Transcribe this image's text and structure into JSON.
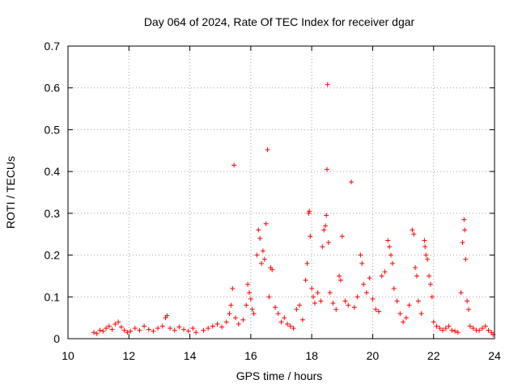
{
  "chart_data": {
    "type": "scatter",
    "title": "Day 064 of 2024, Rate Of TEC Index for receiver dgar",
    "xlabel": "GPS time / hours",
    "ylabel": "ROTI / TECUs",
    "xlim": [
      10,
      24
    ],
    "ylim": [
      0,
      0.7
    ],
    "x_ticks": [
      "10",
      "12",
      "14",
      "16",
      "18",
      "20",
      "22",
      "24"
    ],
    "y_ticks": [
      "0",
      "0.1",
      "0.2",
      "0.3",
      "0.4",
      "0.5",
      "0.6",
      "0.7"
    ],
    "grid": true,
    "marker": "+",
    "color": "#ff0000",
    "series": [
      {
        "points": [
          [
            10.85,
            0.015
          ],
          [
            10.95,
            0.012
          ],
          [
            11.05,
            0.02
          ],
          [
            11.15,
            0.018
          ],
          [
            11.25,
            0.025
          ],
          [
            11.35,
            0.03
          ],
          [
            11.45,
            0.022
          ],
          [
            11.55,
            0.035
          ],
          [
            11.65,
            0.04
          ],
          [
            11.75,
            0.028
          ],
          [
            11.85,
            0.02
          ],
          [
            11.95,
            0.015
          ],
          [
            12.05,
            0.018
          ],
          [
            12.2,
            0.025
          ],
          [
            12.35,
            0.02
          ],
          [
            12.5,
            0.03
          ],
          [
            12.65,
            0.022
          ],
          [
            12.8,
            0.018
          ],
          [
            12.95,
            0.025
          ],
          [
            13.1,
            0.03
          ],
          [
            13.2,
            0.05
          ],
          [
            13.25,
            0.055
          ],
          [
            13.35,
            0.025
          ],
          [
            13.5,
            0.02
          ],
          [
            13.65,
            0.028
          ],
          [
            13.8,
            0.022
          ],
          [
            13.95,
            0.018
          ],
          [
            14.1,
            0.025
          ],
          [
            14.2,
            0.015
          ],
          [
            14.45,
            0.02
          ],
          [
            14.6,
            0.025
          ],
          [
            14.75,
            0.03
          ],
          [
            14.9,
            0.035
          ],
          [
            15.05,
            0.028
          ],
          [
            15.2,
            0.04
          ],
          [
            15.3,
            0.06
          ],
          [
            15.35,
            0.08
          ],
          [
            15.4,
            0.12
          ],
          [
            15.45,
            0.415
          ],
          [
            15.5,
            0.05
          ],
          [
            15.6,
            0.035
          ],
          [
            15.75,
            0.045
          ],
          [
            15.85,
            0.08
          ],
          [
            15.9,
            0.13
          ],
          [
            15.95,
            0.11
          ],
          [
            16.0,
            0.095
          ],
          [
            16.05,
            0.07
          ],
          [
            16.1,
            0.06
          ],
          [
            16.2,
            0.2
          ],
          [
            16.25,
            0.26
          ],
          [
            16.3,
            0.24
          ],
          [
            16.35,
            0.18
          ],
          [
            16.4,
            0.21
          ],
          [
            16.45,
            0.19
          ],
          [
            16.5,
            0.275
          ],
          [
            16.55,
            0.452
          ],
          [
            16.6,
            0.1
          ],
          [
            16.65,
            0.17
          ],
          [
            16.7,
            0.165
          ],
          [
            16.8,
            0.075
          ],
          [
            16.9,
            0.06
          ],
          [
            17.0,
            0.04
          ],
          [
            17.1,
            0.05
          ],
          [
            17.2,
            0.035
          ],
          [
            17.3,
            0.03
          ],
          [
            17.4,
            0.025
          ],
          [
            17.5,
            0.07
          ],
          [
            17.6,
            0.08
          ],
          [
            17.7,
            0.045
          ],
          [
            17.8,
            0.14
          ],
          [
            17.85,
            0.18
          ],
          [
            17.9,
            0.3
          ],
          [
            17.92,
            0.305
          ],
          [
            17.95,
            0.245
          ],
          [
            18.0,
            0.12
          ],
          [
            18.05,
            0.1
          ],
          [
            18.1,
            0.085
          ],
          [
            18.2,
            0.11
          ],
          [
            18.3,
            0.09
          ],
          [
            18.35,
            0.22
          ],
          [
            18.4,
            0.26
          ],
          [
            18.45,
            0.27
          ],
          [
            18.48,
            0.295
          ],
          [
            18.5,
            0.405
          ],
          [
            18.52,
            0.608
          ],
          [
            18.55,
            0.23
          ],
          [
            18.6,
            0.11
          ],
          [
            18.7,
            0.085
          ],
          [
            18.8,
            0.07
          ],
          [
            18.9,
            0.15
          ],
          [
            18.95,
            0.14
          ],
          [
            19.0,
            0.245
          ],
          [
            19.1,
            0.09
          ],
          [
            19.2,
            0.08
          ],
          [
            19.3,
            0.375
          ],
          [
            19.4,
            0.075
          ],
          [
            19.5,
            0.1
          ],
          [
            19.6,
            0.2
          ],
          [
            19.65,
            0.18
          ],
          [
            19.7,
            0.13
          ],
          [
            19.8,
            0.11
          ],
          [
            19.9,
            0.145
          ],
          [
            20.0,
            0.095
          ],
          [
            20.1,
            0.07
          ],
          [
            20.2,
            0.065
          ],
          [
            20.3,
            0.15
          ],
          [
            20.4,
            0.16
          ],
          [
            20.5,
            0.235
          ],
          [
            20.55,
            0.22
          ],
          [
            20.6,
            0.2
          ],
          [
            20.65,
            0.18
          ],
          [
            20.7,
            0.12
          ],
          [
            20.8,
            0.09
          ],
          [
            20.9,
            0.06
          ],
          [
            21.0,
            0.04
          ],
          [
            21.1,
            0.05
          ],
          [
            21.2,
            0.08
          ],
          [
            21.3,
            0.26
          ],
          [
            21.35,
            0.25
          ],
          [
            21.4,
            0.17
          ],
          [
            21.45,
            0.15
          ],
          [
            21.5,
            0.09
          ],
          [
            21.6,
            0.06
          ],
          [
            21.7,
            0.235
          ],
          [
            21.72,
            0.22
          ],
          [
            21.75,
            0.2
          ],
          [
            21.8,
            0.19
          ],
          [
            21.85,
            0.15
          ],
          [
            21.9,
            0.13
          ],
          [
            21.95,
            0.1
          ],
          [
            22.0,
            0.04
          ],
          [
            22.1,
            0.03
          ],
          [
            22.2,
            0.025
          ],
          [
            22.3,
            0.02
          ],
          [
            22.4,
            0.025
          ],
          [
            22.5,
            0.03
          ],
          [
            22.6,
            0.02
          ],
          [
            22.7,
            0.018
          ],
          [
            22.8,
            0.015
          ],
          [
            22.9,
            0.11
          ],
          [
            22.95,
            0.23
          ],
          [
            23.0,
            0.285
          ],
          [
            23.02,
            0.26
          ],
          [
            23.05,
            0.19
          ],
          [
            23.1,
            0.09
          ],
          [
            23.15,
            0.07
          ],
          [
            23.2,
            0.03
          ],
          [
            23.3,
            0.025
          ],
          [
            23.4,
            0.02
          ],
          [
            23.5,
            0.02
          ],
          [
            23.6,
            0.025
          ],
          [
            23.7,
            0.03
          ],
          [
            23.8,
            0.02
          ],
          [
            23.9,
            0.015
          ],
          [
            23.95,
            0.01
          ]
        ]
      }
    ]
  }
}
